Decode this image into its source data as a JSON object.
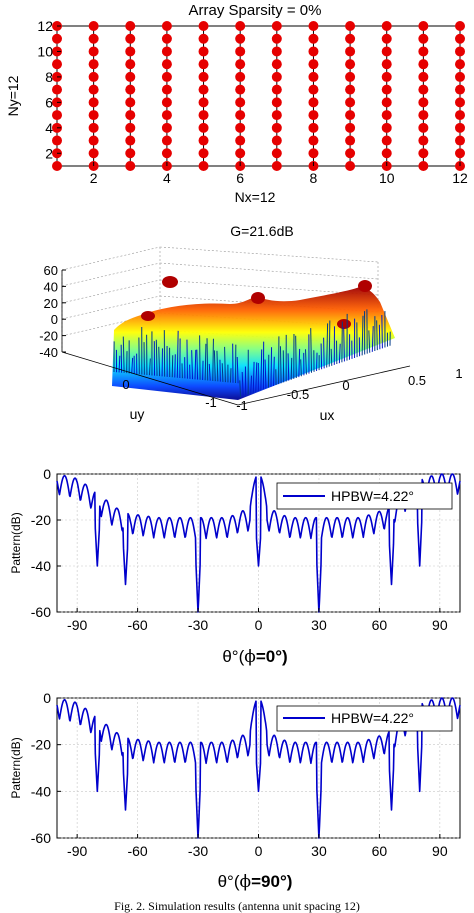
{
  "caption": "Fig. 2. Simulation results (antenna unit spacing 12)",
  "colors": {
    "marker": "#e60000",
    "line": "#0000cc",
    "grid": "#c8c8c8"
  },
  "chart_data": [
    {
      "type": "scatter",
      "title": "Array Sparsity = 0%",
      "xlabel": "Nx=12",
      "ylabel": "Ny=12",
      "xlim": [
        1,
        12
      ],
      "ylim": [
        1,
        12
      ],
      "xticks": [
        2,
        4,
        6,
        8,
        10,
        12
      ],
      "yticks": [
        2,
        4,
        6,
        8,
        10,
        12
      ],
      "grid": false,
      "xticklabels": [
        "2",
        "4",
        "6",
        "8",
        "10",
        "12"
      ],
      "yticklabels": [
        "2",
        "4",
        "6",
        "8",
        "10",
        "12"
      ],
      "points": "all integer (x, y) with x = 1..12, y = 1..12 (144 elements)",
      "nx": 12,
      "ny": 12
    },
    {
      "type": "surface",
      "title": "G=21.6dB",
      "xlabel": "ux",
      "ylabel": "uy",
      "zlim": [
        -40,
        60
      ],
      "zticks": [
        -40,
        -20,
        0,
        20,
        40,
        60
      ],
      "zticklabels": [
        "-40",
        "-20",
        "0",
        "20",
        "40",
        "60"
      ],
      "uxticklabels": [
        "-1",
        "-0.5",
        "0",
        "0.5",
        "1"
      ],
      "uyticklabels": [
        "-1",
        "0"
      ],
      "peaks_db": [
        48,
        40,
        40,
        30,
        30,
        24
      ],
      "floor_db": -40,
      "colormap": "jet"
    },
    {
      "type": "line",
      "xlabel_theta": "θ°(",
      "xlabel_phi": "ϕ",
      "xlabel_value": "=0°)",
      "ylabel": "Pattern(dB)",
      "xlim": [
        -100,
        100
      ],
      "ylim": [
        -60,
        0
      ],
      "xticks": [
        -90,
        -60,
        -30,
        0,
        30,
        60,
        90
      ],
      "yticks": [
        0,
        -20,
        -40,
        -60
      ],
      "xticklabels": [
        "-90",
        "-60",
        "-30",
        "0",
        "30",
        "60",
        "90"
      ],
      "yticklabels": [
        "0",
        "-20",
        "-40",
        "-60"
      ],
      "legend": "HPBW=4.22°",
      "legend_position": "top-right",
      "series": [
        {
          "name": "HPBW=4.22°",
          "mainlobe_theta": 0,
          "envelope": [
            [
              -100,
              0
            ],
            [
              -90,
              -2
            ],
            [
              -80,
              -8
            ],
            [
              -72,
              -14
            ],
            [
              -66,
              -17
            ],
            [
              -50,
              -19
            ],
            [
              -30,
              -19
            ],
            [
              -15,
              -19
            ],
            [
              -8,
              -16
            ],
            [
              8,
              -16
            ],
            [
              15,
              -19
            ],
            [
              30,
              -19
            ],
            [
              50,
              -19
            ],
            [
              58,
              -17
            ],
            [
              66,
              -14
            ],
            [
              72,
              -8
            ],
            [
              80,
              -2
            ],
            [
              90,
              0
            ],
            [
              100,
              0
            ]
          ],
          "deep_nulls": [
            [
              -30,
              -60
            ],
            [
              30,
              -60
            ],
            [
              -66,
              -48
            ],
            [
              66,
              -48
            ],
            [
              -80,
              -40
            ],
            [
              80,
              -40
            ],
            [
              0,
              -40
            ]
          ]
        }
      ]
    },
    {
      "type": "line",
      "xlabel_theta": "θ°(",
      "xlabel_phi": "ϕ",
      "xlabel_value": "=90°)",
      "ylabel": "Pattern(dB)",
      "xlim": [
        -100,
        100
      ],
      "ylim": [
        -60,
        0
      ],
      "xticks": [
        -90,
        -60,
        -30,
        0,
        30,
        60,
        90
      ],
      "yticks": [
        0,
        -20,
        -40,
        -60
      ],
      "xticklabels": [
        "-90",
        "-60",
        "-30",
        "0",
        "30",
        "60",
        "90"
      ],
      "yticklabels": [
        "0",
        "-20",
        "-40",
        "-60"
      ],
      "legend": "HPBW=4.22°",
      "legend_position": "top-right",
      "series": [
        {
          "name": "HPBW=4.22°",
          "mainlobe_theta": 0,
          "envelope": [
            [
              -100,
              0
            ],
            [
              -90,
              -2
            ],
            [
              -80,
              -8
            ],
            [
              -72,
              -14
            ],
            [
              -66,
              -17
            ],
            [
              -50,
              -19
            ],
            [
              -30,
              -19
            ],
            [
              -15,
              -19
            ],
            [
              -8,
              -16
            ],
            [
              8,
              -16
            ],
            [
              15,
              -19
            ],
            [
              30,
              -19
            ],
            [
              50,
              -19
            ],
            [
              58,
              -17
            ],
            [
              66,
              -14
            ],
            [
              72,
              -8
            ],
            [
              80,
              -2
            ],
            [
              90,
              0
            ],
            [
              100,
              0
            ]
          ],
          "deep_nulls": [
            [
              -30,
              -60
            ],
            [
              30,
              -60
            ],
            [
              -66,
              -48
            ],
            [
              66,
              -48
            ],
            [
              -80,
              -40
            ],
            [
              80,
              -40
            ],
            [
              0,
              -40
            ]
          ]
        }
      ]
    }
  ]
}
